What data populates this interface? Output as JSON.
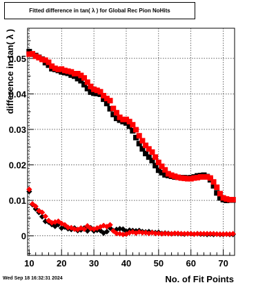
{
  "title": "Fitted difference in tan( λ ) for Global Rec Pion NoHits",
  "date_stamp": "Wed Sep 18 16:32:31 2024",
  "colors": {
    "series_1": "#000000",
    "series_2": "#ff0000",
    "grid": "#000000"
  },
  "chart_data": {
    "type": "scatter",
    "title": "Fitted difference in tan( λ ) for Global Rec Pion NoHits",
    "xlabel": "No. of Fit Points",
    "ylabel": "difference in tan( λ )",
    "xlim": [
      9.5,
      73.5
    ],
    "ylim": [
      -0.0055,
      0.0585
    ],
    "x_ticks": [
      10,
      20,
      30,
      40,
      50,
      60,
      70
    ],
    "y_ticks": [
      0,
      0.01,
      0.02,
      0.03,
      0.04,
      0.05
    ],
    "y_tick_labels": [
      "0",
      "0.01",
      "0.02",
      "0.03",
      "0.04",
      "0.05"
    ],
    "grid": true,
    "legend": "none",
    "series": [
      {
        "marker": "square",
        "color": "#000000",
        "x": [
          10,
          11,
          12,
          13,
          14,
          15,
          16,
          17,
          18,
          19,
          20,
          21,
          22,
          23,
          24,
          25,
          26,
          27,
          28,
          29,
          30,
          31,
          32,
          33,
          34,
          35,
          36,
          37,
          38,
          39,
          40,
          41,
          42,
          43,
          44,
          45,
          46,
          47,
          48,
          49,
          50,
          51,
          52,
          53,
          54,
          55,
          56,
          57,
          58,
          59,
          60,
          61,
          62,
          63,
          64,
          65,
          66,
          67,
          68,
          69,
          70,
          71,
          72,
          73
        ],
        "y": [
          0.0519,
          0.0512,
          0.0508,
          0.0503,
          0.0498,
          0.0488,
          0.0481,
          0.0471,
          0.0469,
          0.0466,
          0.0462,
          0.046,
          0.0458,
          0.0453,
          0.045,
          0.0443,
          0.0437,
          0.0426,
          0.0415,
          0.0405,
          0.0402,
          0.0401,
          0.0399,
          0.0385,
          0.0373,
          0.0358,
          0.0342,
          0.0331,
          0.0326,
          0.0322,
          0.0318,
          0.0309,
          0.0296,
          0.0277,
          0.026,
          0.0245,
          0.0232,
          0.0222,
          0.0212,
          0.0198,
          0.0185,
          0.0178,
          0.0172,
          0.017,
          0.0168,
          0.0166,
          0.0165,
          0.0164,
          0.0164,
          0.0163,
          0.0164,
          0.0166,
          0.0169,
          0.017,
          0.0171,
          0.0167,
          0.0158,
          0.0141,
          0.0121,
          0.0107,
          0.0102,
          0.01,
          0.0101,
          0.0101
        ]
      },
      {
        "marker": "square",
        "color": "#ff0000",
        "x": [
          10,
          11,
          12,
          13,
          14,
          15,
          16,
          17,
          18,
          19,
          20,
          21,
          22,
          23,
          24,
          25,
          26,
          27,
          28,
          29,
          30,
          31,
          32,
          33,
          34,
          35,
          36,
          37,
          38,
          39,
          40,
          41,
          42,
          43,
          44,
          45,
          46,
          47,
          48,
          49,
          50,
          51,
          52,
          53,
          54,
          55,
          56,
          57,
          58,
          59,
          60,
          61,
          62,
          63,
          64,
          65,
          66,
          67,
          68,
          69,
          70,
          71,
          72,
          73
        ],
        "y": [
          0.0512,
          0.0513,
          0.0506,
          0.0502,
          0.0497,
          0.0495,
          0.0489,
          0.0478,
          0.0472,
          0.0469,
          0.047,
          0.0466,
          0.0464,
          0.0462,
          0.0457,
          0.0457,
          0.0452,
          0.0445,
          0.0433,
          0.0421,
          0.0413,
          0.041,
          0.0406,
          0.0395,
          0.0387,
          0.0381,
          0.0359,
          0.0347,
          0.0334,
          0.0328,
          0.0328,
          0.0322,
          0.0313,
          0.0299,
          0.0282,
          0.0268,
          0.0255,
          0.0245,
          0.0236,
          0.0222,
          0.0207,
          0.0196,
          0.0186,
          0.0175,
          0.0171,
          0.0168,
          0.0165,
          0.0163,
          0.0162,
          0.0161,
          0.0161,
          0.0163,
          0.0164,
          0.0166,
          0.0166,
          0.0166,
          0.0163,
          0.0152,
          0.0137,
          0.0119,
          0.0107,
          0.0104,
          0.0102,
          0.0102
        ]
      },
      {
        "marker": "diamond",
        "color": "#000000",
        "x": [
          10,
          11,
          12,
          13,
          14,
          15,
          16,
          17,
          18,
          19,
          20,
          21,
          22,
          23,
          24,
          25,
          26,
          27,
          28,
          29,
          30,
          31,
          32,
          33,
          34,
          35,
          36,
          37,
          38,
          39,
          40,
          41,
          42,
          43,
          44,
          45,
          46,
          47,
          48,
          49,
          50,
          51,
          52,
          53,
          54,
          55,
          56,
          57,
          58,
          59,
          60,
          61,
          62,
          63,
          64,
          65,
          66,
          67,
          68,
          69,
          70,
          71,
          72,
          73
        ],
        "y": [
          0.0125,
          0.0088,
          0.0076,
          0.0066,
          0.0054,
          0.0041,
          0.0039,
          0.0032,
          0.0027,
          0.0032,
          0.0022,
          0.0025,
          0.002,
          0.0018,
          0.0022,
          0.0015,
          0.0017,
          0.0022,
          0.0014,
          0.0023,
          0.0014,
          0.0016,
          0.0015,
          0.0008,
          0.0012,
          0.0022,
          0.0015,
          0.0018,
          0.002,
          0.0019,
          0.0013,
          0.0016,
          0.0015,
          0.0014,
          0.0015,
          0.0012,
          0.0011,
          0.0012,
          0.001,
          0.0009,
          0.001,
          0.0007,
          0.0008,
          0.0007,
          0.0006,
          0.0007,
          0.0006,
          0.0006,
          0.0005,
          0.0006,
          0.0006,
          0.0005,
          0.0006,
          0.0005,
          0.0005,
          0.0004,
          0.0005,
          0.0004,
          0.0005,
          0.0004,
          0.0004,
          0.0005,
          0.0004,
          0.0004
        ]
      },
      {
        "marker": "diamond",
        "color": "#ff0000",
        "x": [
          10,
          11,
          12,
          13,
          14,
          15,
          16,
          17,
          18,
          19,
          20,
          21,
          22,
          23,
          24,
          25,
          26,
          27,
          28,
          29,
          30,
          31,
          32,
          33,
          34,
          35,
          36,
          37,
          38,
          39,
          40,
          41,
          42,
          43,
          44,
          45,
          46,
          47,
          48,
          49,
          50,
          51,
          52,
          53,
          54,
          55,
          56,
          57,
          58,
          59,
          60,
          61,
          62,
          63,
          64,
          65,
          66,
          67,
          68,
          69,
          70,
          71,
          72,
          73
        ],
        "y": [
          0.0131,
          0.009,
          0.0083,
          0.0071,
          0.0066,
          0.0055,
          0.0043,
          0.0037,
          0.0039,
          0.0041,
          0.0035,
          0.0031,
          0.0024,
          0.0023,
          0.0019,
          0.0018,
          0.0022,
          0.0019,
          0.0028,
          0.0021,
          0.0019,
          0.0022,
          0.0025,
          0.0029,
          0.0026,
          0.0031,
          0.0014,
          0.0007,
          0.0006,
          0.0004,
          0.0005,
          0.0009,
          0.0011,
          0.0008,
          0.0011,
          0.0009,
          0.0009,
          0.0007,
          0.0009,
          0.0007,
          0.0007,
          0.0006,
          0.0007,
          0.0006,
          0.0006,
          0.0007,
          0.0007,
          0.0006,
          0.0006,
          0.0006,
          0.0006,
          0.0005,
          0.0006,
          0.0006,
          0.0006,
          0.0006,
          0.0006,
          0.0006,
          0.0005,
          0.0005,
          0.0005,
          0.0005,
          0.0005,
          0.0006
        ]
      }
    ]
  }
}
